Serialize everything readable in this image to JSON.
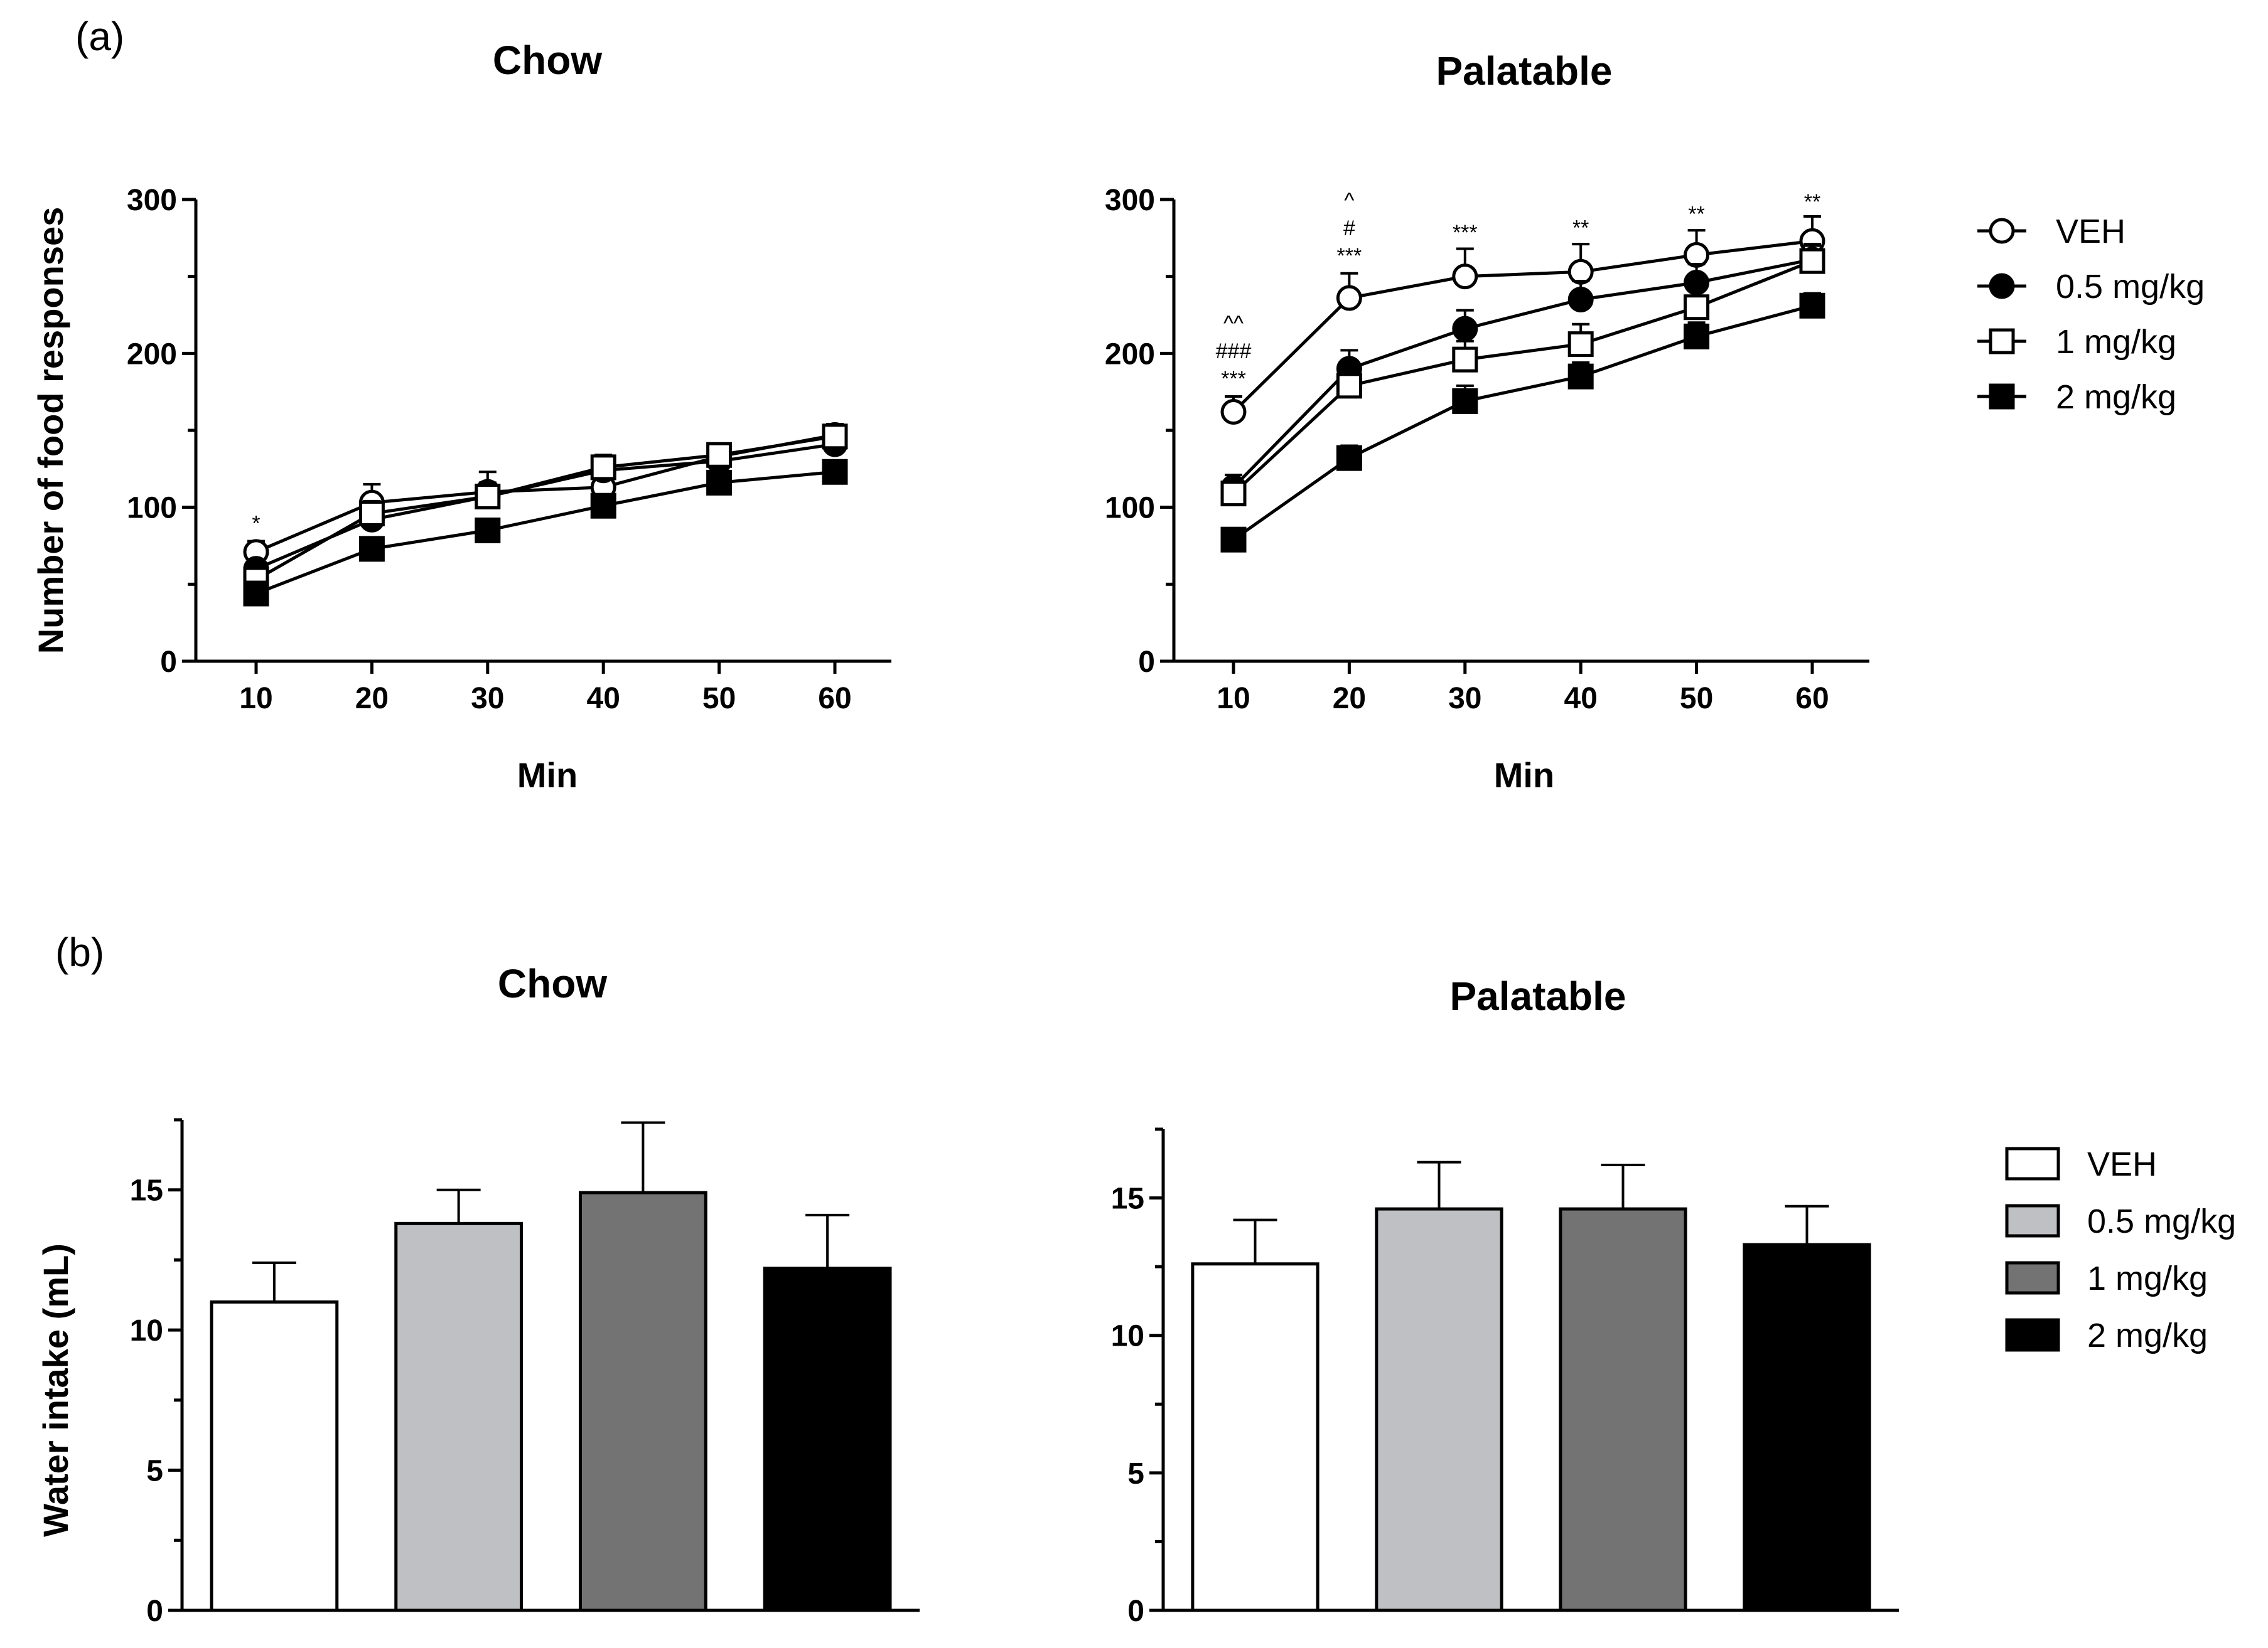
{
  "panel_labels": {
    "a": "(a)",
    "b": "(b)"
  },
  "legend_a": [
    {
      "label": "VEH",
      "marker": "circle",
      "fill": "#ffffff"
    },
    {
      "label": "0.5 mg/kg",
      "marker": "circle",
      "fill": "#000000"
    },
    {
      "label": "1 mg/kg",
      "marker": "square",
      "fill": "#ffffff"
    },
    {
      "label": "2 mg/kg",
      "marker": "square",
      "fill": "#000000"
    }
  ],
  "legend_b": [
    {
      "label": "VEH",
      "fill": "#ffffff"
    },
    {
      "label": "0.5 mg/kg",
      "fill": "#bfc0c4"
    },
    {
      "label": "1 mg/kg",
      "fill": "#737373"
    },
    {
      "label": "2 mg/kg",
      "fill": "#000000"
    }
  ],
  "chart_data": [
    {
      "type": "line",
      "panel": "a",
      "title": "Chow",
      "xlabel": "Min",
      "ylabel": "Number of food responses",
      "x": [
        10,
        20,
        30,
        40,
        50,
        60
      ],
      "xticks": [
        "10",
        "20",
        "30",
        "40",
        "50",
        "60"
      ],
      "yticks": [
        0,
        100,
        200,
        300
      ],
      "ylim": [
        0,
        300
      ],
      "series": [
        {
          "name": "VEH",
          "values": [
            71,
            103,
            110,
            113,
            133,
            147
          ],
          "errors": [
            7,
            12,
            13,
            10,
            8,
            7
          ]
        },
        {
          "name": "0.5 mg/kg",
          "values": [
            60,
            92,
            107,
            124,
            130,
            141
          ],
          "errors": [
            6,
            8,
            9,
            8,
            7,
            7
          ]
        },
        {
          "name": "1 mg/kg",
          "values": [
            53,
            96,
            107,
            126,
            134,
            146
          ],
          "errors": [
            6,
            8,
            8,
            8,
            7,
            7
          ]
        },
        {
          "name": "2 mg/kg",
          "values": [
            44,
            73,
            85,
            101,
            116,
            123
          ],
          "errors": [
            5,
            6,
            6,
            6,
            6,
            6
          ]
        }
      ],
      "annotations": [
        {
          "x": 10,
          "y_above": 80,
          "lines": [
            "*"
          ]
        }
      ]
    },
    {
      "type": "line",
      "panel": "a",
      "title": "Palatable",
      "xlabel": "Min",
      "ylabel": "",
      "x": [
        10,
        20,
        30,
        40,
        50,
        60
      ],
      "xticks": [
        "10",
        "20",
        "30",
        "40",
        "50",
        "60"
      ],
      "yticks": [
        0,
        100,
        200,
        300
      ],
      "ylim": [
        0,
        300
      ],
      "series": [
        {
          "name": "VEH",
          "values": [
            162,
            236,
            250,
            253,
            264,
            273
          ],
          "errors": [
            10,
            16,
            18,
            18,
            16,
            16
          ]
        },
        {
          "name": "0.5 mg/kg",
          "values": [
            113,
            190,
            216,
            235,
            246,
            261
          ],
          "errors": [
            8,
            12,
            12,
            12,
            12,
            10
          ]
        },
        {
          "name": "1 mg/kg",
          "values": [
            109,
            179,
            196,
            206,
            230,
            260
          ],
          "errors": [
            7,
            11,
            12,
            13,
            14,
            10
          ]
        },
        {
          "name": "2 mg/kg",
          "values": [
            79,
            132,
            169,
            185,
            211,
            231
          ],
          "errors": [
            6,
            8,
            10,
            9,
            9,
            8
          ]
        }
      ],
      "annotations": [
        {
          "x": 10,
          "y_above": 174,
          "lines": [
            "^^",
            "###",
            "***"
          ]
        },
        {
          "x": 20,
          "y_above": 254,
          "lines": [
            "^",
            "#",
            "***"
          ]
        },
        {
          "x": 30,
          "y_above": 269,
          "lines": [
            "***"
          ]
        },
        {
          "x": 40,
          "y_above": 272,
          "lines": [
            "**"
          ]
        },
        {
          "x": 50,
          "y_above": 281,
          "lines": [
            "**"
          ]
        },
        {
          "x": 60,
          "y_above": 289,
          "lines": [
            "**"
          ]
        }
      ]
    },
    {
      "type": "bar",
      "panel": "b",
      "title": "Chow",
      "xlabel": "",
      "ylabel": "Water intake (mL)",
      "categories": [
        "VEH",
        "0.5 mg/kg",
        "1 mg/kg",
        "2 mg/kg"
      ],
      "values": [
        11.0,
        13.8,
        14.9,
        12.2
      ],
      "errors": [
        1.4,
        1.2,
        2.5,
        1.9
      ],
      "yticks": [
        0,
        5,
        10,
        15
      ],
      "ylim": [
        0,
        17.5
      ]
    },
    {
      "type": "bar",
      "panel": "b",
      "title": "Palatable",
      "xlabel": "",
      "ylabel": "",
      "categories": [
        "VEH",
        "0.5 mg/kg",
        "1 mg/kg",
        "2 mg/kg"
      ],
      "values": [
        12.6,
        14.6,
        14.6,
        13.3
      ],
      "errors": [
        1.6,
        1.7,
        1.6,
        1.4
      ],
      "yticks": [
        0,
        5,
        10,
        15
      ],
      "ylim": [
        0,
        17.5
      ]
    }
  ]
}
